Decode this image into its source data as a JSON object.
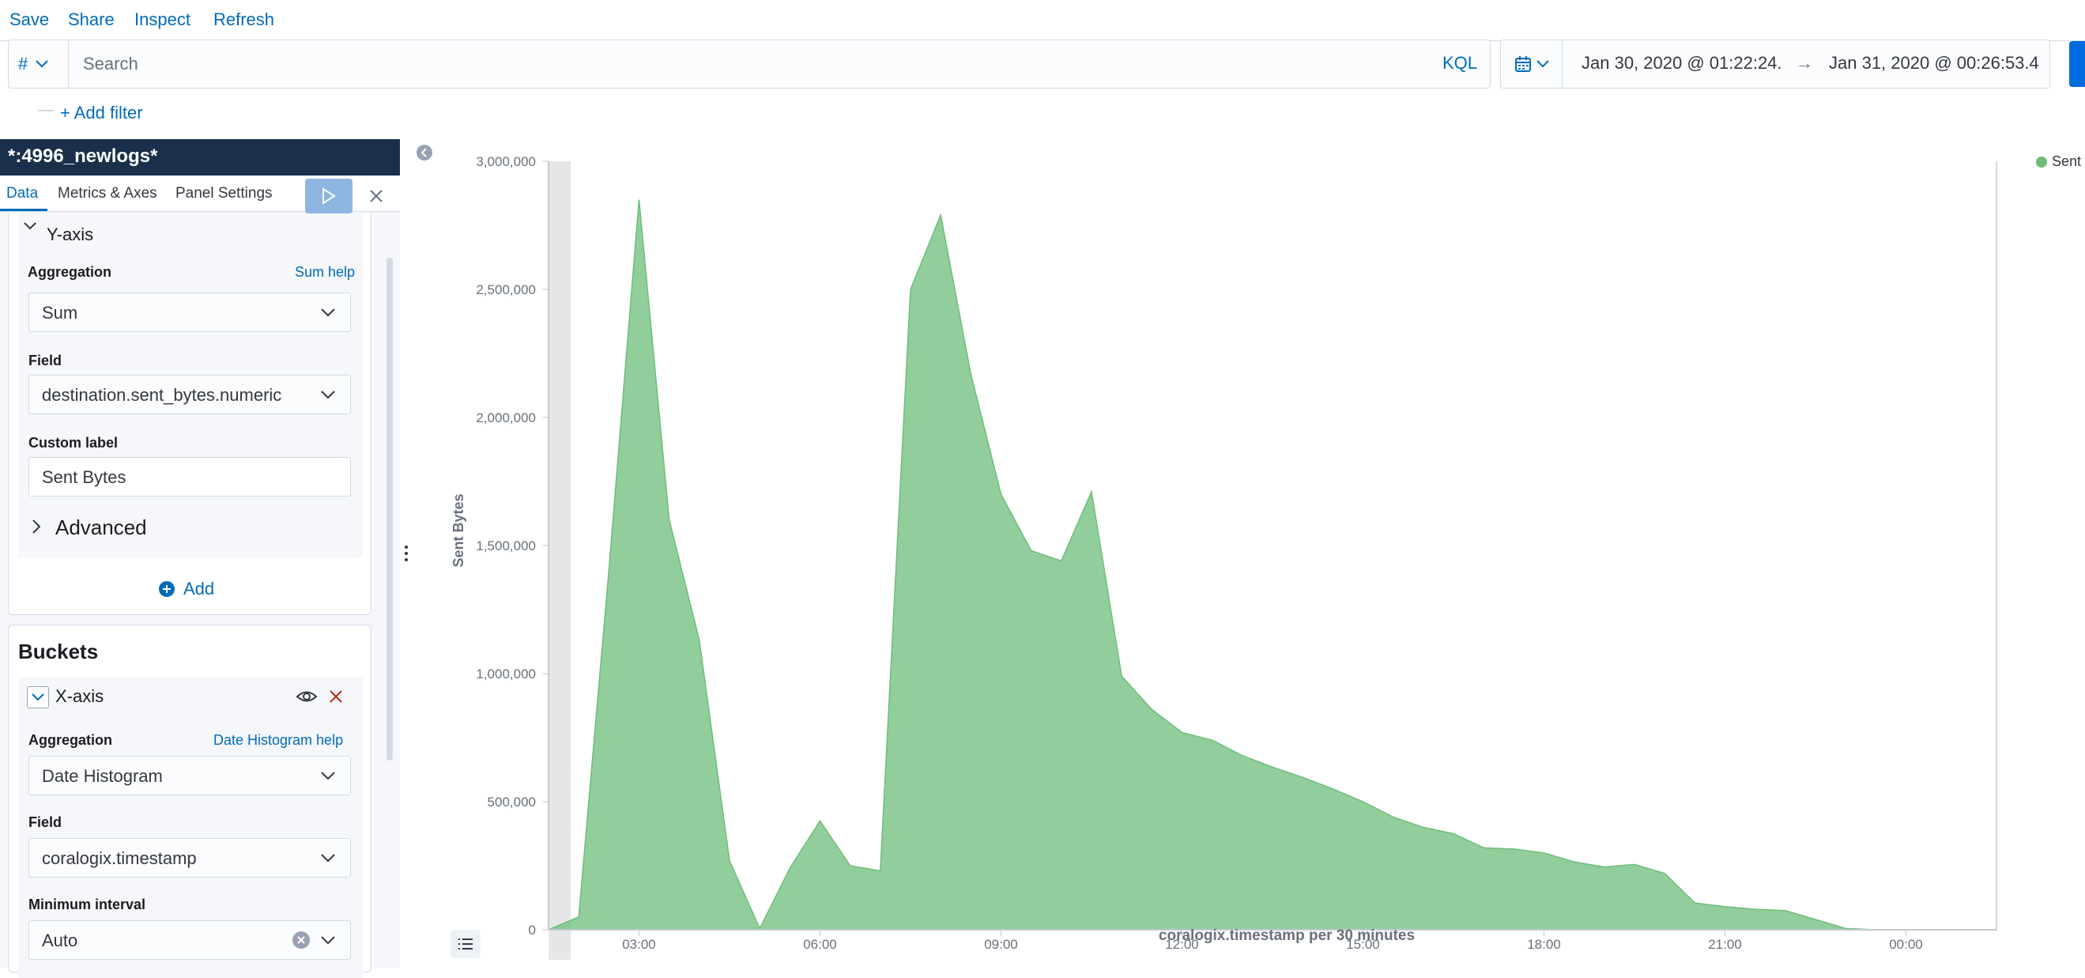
{
  "top_menu": {
    "save": "Save",
    "share": "Share",
    "inspect": "Inspect",
    "refresh": "Refresh"
  },
  "query": {
    "language_symbol": "#",
    "search_placeholder": "Search",
    "language_link": "KQL",
    "date_start": "Jan 30, 2020 @ 01:22:24.",
    "date_arrow": "→",
    "date_end": "Jan 31, 2020 @ 00:26:53.4"
  },
  "filter": {
    "add_filter": "+ Add filter",
    "separator": "—"
  },
  "editor": {
    "index_pattern": "*:4996_newlogs*",
    "tabs": [
      "Data",
      "Metrics & Axes",
      "Panel Settings"
    ],
    "metrics": {
      "title": "Y-axis",
      "aggregation_label": "Aggregation",
      "aggregation_help": "Sum help",
      "aggregation_value": "Sum",
      "field_label": "Field",
      "field_value": "destination.sent_bytes.numeric",
      "custom_label_label": "Custom label",
      "custom_label_value": "Sent Bytes",
      "advanced": "Advanced",
      "add": "Add"
    },
    "buckets": {
      "title": "Buckets",
      "bucket_title": "X-axis",
      "aggregation_label": "Aggregation",
      "aggregation_help": "Date Histogram help",
      "aggregation_value": "Date Histogram",
      "field_label": "Field",
      "field_value": "coralogix.timestamp",
      "interval_label": "Minimum interval",
      "interval_value": "Auto"
    }
  },
  "chart_data": {
    "type": "area",
    "x": [
      "01:30",
      "02:00",
      "02:30",
      "03:00",
      "03:30",
      "04:00",
      "04:30",
      "05:00",
      "05:30",
      "06:00",
      "06:30",
      "07:00",
      "07:30",
      "08:00",
      "08:30",
      "09:00",
      "09:30",
      "10:00",
      "10:30",
      "11:00",
      "11:30",
      "12:00",
      "12:30",
      "13:00",
      "13:30",
      "14:00",
      "14:30",
      "15:00",
      "15:30",
      "16:00",
      "16:30",
      "17:00",
      "17:30",
      "18:00",
      "18:30",
      "19:00",
      "19:30",
      "20:00",
      "20:30",
      "21:00",
      "21:30",
      "22:00",
      "22:30",
      "23:00",
      "23:30"
    ],
    "series": [
      {
        "name": "Sent Bytes",
        "values": [
          0,
          50000,
          1400000,
          2850000,
          1600000,
          1130000,
          270000,
          5000,
          240000,
          425000,
          250000,
          230000,
          2500000,
          2790000,
          2170000,
          1700000,
          1480000,
          1440000,
          1710000,
          990000,
          860000,
          770000,
          740000,
          680000,
          635000,
          595000,
          550000,
          500000,
          440000,
          400000,
          375000,
          320000,
          315000,
          300000,
          265000,
          245000,
          255000,
          220000,
          105000,
          90000,
          80000,
          75000,
          40000,
          5000,
          0
        ]
      }
    ],
    "xlabel": "coralogix.timestamp per 30 minutes",
    "ylabel": "Sent Bytes",
    "ylim": [
      0,
      3000000
    ],
    "y_ticks": [
      0,
      500000,
      1000000,
      1500000,
      2000000,
      2500000,
      3000000
    ],
    "y_tick_labels": [
      "0",
      "500,000",
      "1,000,000",
      "1,500,000",
      "2,000,000",
      "2,500,000",
      "3,000,000"
    ],
    "x_ticks": [
      "03:00",
      "06:00",
      "09:00",
      "12:00",
      "15:00",
      "18:00",
      "21:00",
      "00:00"
    ],
    "legend": "top-right",
    "legend_label": "Sent",
    "color": "#6dbd7a"
  }
}
